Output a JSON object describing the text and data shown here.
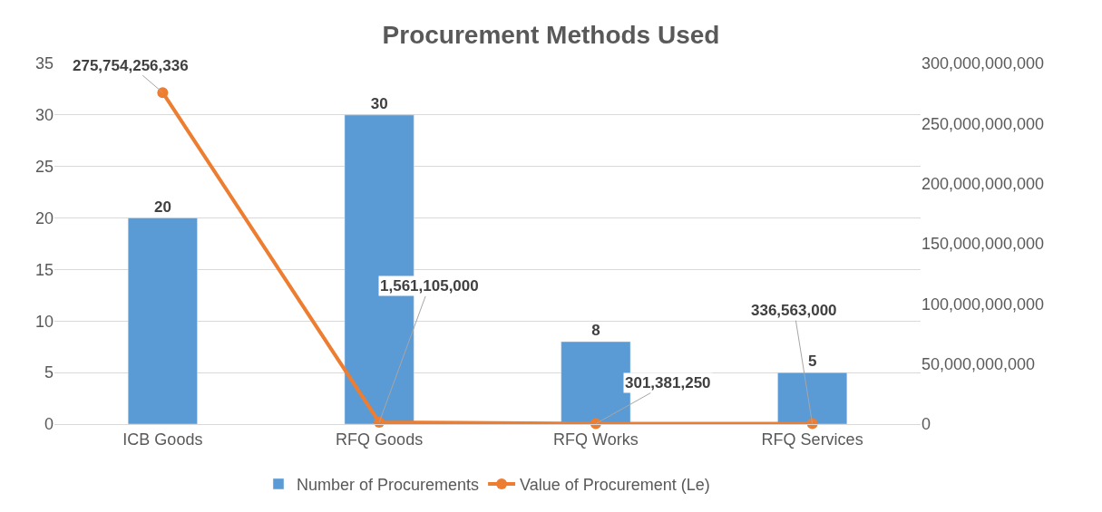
{
  "chart_data": {
    "type": "bar",
    "title": "Procurement Methods Used",
    "categories": [
      "ICB Goods",
      "RFQ Goods",
      "RFQ Works",
      "RFQ Services"
    ],
    "series": [
      {
        "name": "Number of Procurements",
        "color": "#5b9bd5",
        "values": [
          20,
          30,
          8,
          5
        ],
        "value_labels": [
          "20",
          "30",
          "8",
          "5"
        ]
      },
      {
        "name": "Value of Procurement (Le)",
        "type": "line",
        "axis": "y2",
        "color": "#ed7d31",
        "marker": "circle",
        "values": [
          275754256336,
          1561105000,
          301381250,
          336563000
        ],
        "value_labels": [
          "275,754,256,336",
          "1,561,105,000",
          "301,381,250",
          "336,563,000"
        ]
      }
    ],
    "ylim": [
      0,
      35
    ],
    "yticks": [
      0,
      5,
      10,
      15,
      20,
      25,
      30,
      35
    ],
    "y2lim": [
      0,
      300000000000
    ],
    "y2ticks": [
      {
        "value": 0,
        "label": "0"
      },
      {
        "value": 50000000000,
        "label": "50,000,000,000"
      },
      {
        "value": 100000000000,
        "label": "100,000,000,000"
      },
      {
        "value": 150000000000,
        "label": "150,000,000,000"
      },
      {
        "value": 200000000000,
        "label": "200,000,000,000"
      },
      {
        "value": 250000000000,
        "label": "250,000,000,000"
      },
      {
        "value": 300000000000,
        "label": "300,000,000,000"
      }
    ],
    "grid": "y",
    "legend": "bottom"
  }
}
